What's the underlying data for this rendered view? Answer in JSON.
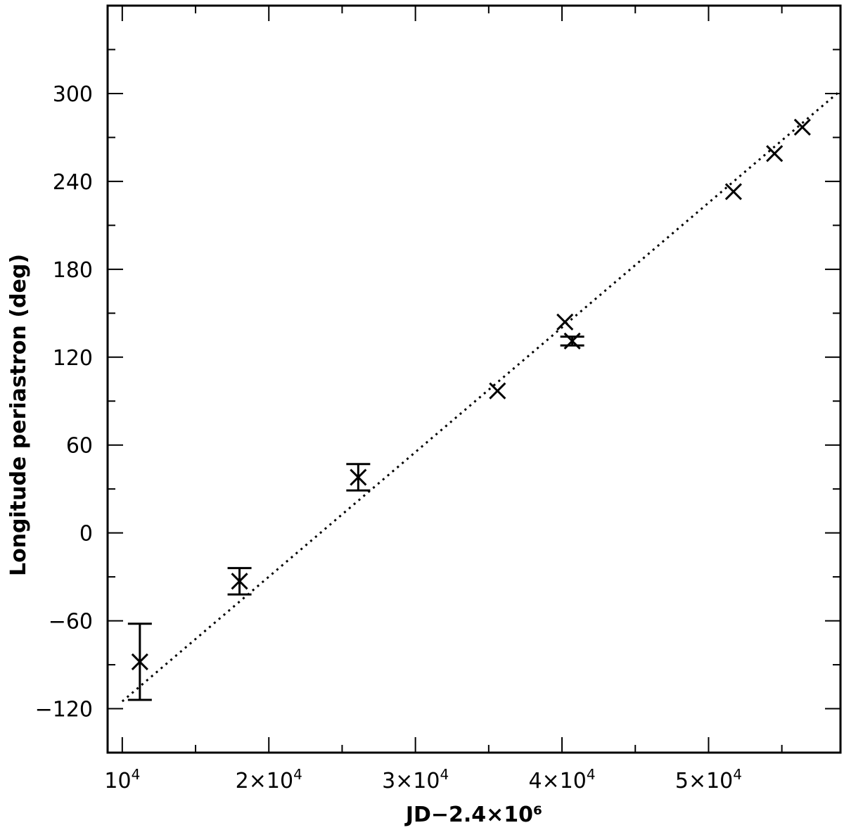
{
  "chart_data": {
    "type": "scatter",
    "title": "",
    "xlabel": "JD−2.4×10⁶",
    "ylabel": "Longitude periastron (deg)",
    "xlim": [
      9000,
      59000
    ],
    "ylim": [
      -150,
      360
    ],
    "x_ticks": [
      {
        "value": 10000,
        "mantissa": "",
        "exp": "4"
      },
      {
        "value": 20000,
        "mantissa": "2×",
        "exp": "4"
      },
      {
        "value": 30000,
        "mantissa": "3×",
        "exp": "4"
      },
      {
        "value": 40000,
        "mantissa": "4×",
        "exp": "4"
      },
      {
        "value": 50000,
        "mantissa": "5×",
        "exp": "4"
      }
    ],
    "x_minor_ticks": [
      15000,
      25000,
      35000,
      45000,
      55000
    ],
    "y_ticks": [
      -120,
      -60,
      0,
      60,
      120,
      180,
      240,
      300
    ],
    "y_tick_labels": [
      "−120",
      "−60",
      "0",
      "60",
      "120",
      "180",
      "240",
      "300"
    ],
    "y_minor_ticks": [
      -150,
      -90,
      -30,
      30,
      90,
      150,
      210,
      270,
      330
    ],
    "grid": false,
    "series": [
      {
        "marker": "x",
        "points": [
          {
            "x": 11200,
            "y": -88,
            "err": 26
          },
          {
            "x": 18000,
            "y": -33,
            "err": 9
          },
          {
            "x": 26100,
            "y": 38,
            "err": 9
          },
          {
            "x": 35600,
            "y": 97
          },
          {
            "x": 40200,
            "y": 144
          },
          {
            "x": 40700,
            "y": 131,
            "err": 3
          },
          {
            "x": 51700,
            "y": 233
          },
          {
            "x": 54500,
            "y": 259
          },
          {
            "x": 56400,
            "y": 277
          }
        ]
      }
    ],
    "fit_line": {
      "style": "dotted",
      "x": [
        10000,
        59000
      ],
      "y": [
        -115,
        302
      ]
    }
  }
}
